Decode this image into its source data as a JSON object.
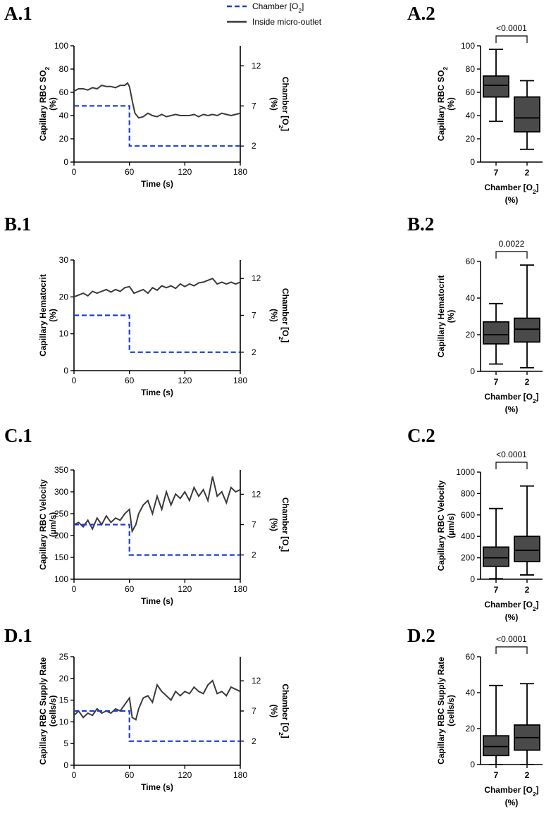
{
  "legend": {
    "chamber": "Chamber [O2]",
    "inside": "Inside micro-outlet"
  },
  "colors": {
    "trace": "#3a3a3a",
    "chamber": "#1a3adf",
    "box": "#4a4a4a",
    "axis": "#000000"
  },
  "chart_data": [
    {
      "id": "A.1",
      "type": "line",
      "title": "",
      "xlabel": "Time (s)",
      "xlim": [
        0,
        180
      ],
      "xticks": [
        0,
        60,
        120,
        180
      ],
      "ylabel": "Capillary RBC SO2",
      "ylabel_unit": "(%)",
      "ylim": [
        0,
        100
      ],
      "yticks": [
        0,
        20,
        40,
        60,
        80,
        100
      ],
      "y2label": "Chamber [O2]",
      "y2label_unit": "(%)",
      "y2lim": [
        0,
        14.5
      ],
      "y2ticks": [
        2,
        7,
        12
      ],
      "series": [
        {
          "name": "Inside micro-outlet",
          "axis": "left",
          "style": "solid",
          "x": [
            0,
            5,
            10,
            15,
            20,
            25,
            30,
            35,
            40,
            45,
            50,
            55,
            58,
            60,
            63,
            66,
            70,
            75,
            80,
            85,
            90,
            95,
            100,
            105,
            110,
            115,
            120,
            125,
            130,
            135,
            140,
            145,
            150,
            155,
            160,
            165,
            170,
            175,
            180
          ],
          "y": [
            61,
            63,
            63,
            62,
            64,
            63,
            66,
            65,
            65,
            64,
            66,
            66,
            68,
            65,
            53,
            42,
            38,
            39,
            42,
            40,
            39,
            41,
            39,
            40,
            41,
            40,
            40,
            40,
            41,
            39,
            41,
            40,
            41,
            40,
            42,
            41,
            40,
            41,
            42
          ]
        },
        {
          "name": "Chamber [O2]",
          "axis": "right",
          "style": "dashed",
          "x": [
            0,
            60,
            60,
            180
          ],
          "y": [
            7,
            7,
            2,
            2
          ]
        }
      ]
    },
    {
      "id": "A.2",
      "type": "box",
      "xlabel": "Chamber [O2]",
      "xlabel_unit": "(%)",
      "categories": [
        "7",
        "2"
      ],
      "ylabel": "Capillary RBC SO2",
      "ylabel_unit": "(%)",
      "ylim": [
        0,
        100
      ],
      "yticks": [
        0,
        20,
        40,
        60,
        80,
        100
      ],
      "boxes": [
        {
          "category": "7",
          "min": 35,
          "q1": 56,
          "median": 66,
          "q3": 74,
          "max": 97
        },
        {
          "category": "2",
          "min": 11,
          "q1": 26,
          "median": 38,
          "q3": 56,
          "max": 70
        }
      ],
      "p_value": "<0.0001"
    },
    {
      "id": "B.1",
      "type": "line",
      "xlabel": "Time (s)",
      "xlim": [
        0,
        180
      ],
      "xticks": [
        0,
        60,
        120,
        180
      ],
      "ylabel": "Capillary Hematocrit",
      "ylabel_unit": "(%)",
      "ylim": [
        0,
        30
      ],
      "yticks": [
        0,
        10,
        20,
        30
      ],
      "y2label": "Chamber [O2]",
      "y2label_unit": "(%)",
      "y2lim": [
        -0.5,
        14.5
      ],
      "y2ticks": [
        2,
        7,
        12
      ],
      "series": [
        {
          "name": "Inside micro-outlet",
          "axis": "left",
          "style": "solid",
          "x": [
            0,
            5,
            10,
            15,
            20,
            25,
            30,
            35,
            40,
            45,
            50,
            55,
            60,
            65,
            70,
            75,
            80,
            85,
            90,
            95,
            100,
            105,
            110,
            115,
            120,
            125,
            130,
            135,
            140,
            145,
            150,
            155,
            160,
            165,
            170,
            175,
            180
          ],
          "y": [
            20,
            20.5,
            21,
            20.3,
            21.5,
            21,
            21.5,
            22,
            21.3,
            22,
            21.5,
            22.5,
            22.8,
            21,
            21.5,
            22,
            21,
            22.5,
            21.8,
            23,
            22.5,
            23,
            22.3,
            23.5,
            22.8,
            23.5,
            23,
            23.8,
            24,
            24.5,
            25,
            23.5,
            24,
            23.5,
            24,
            23.5,
            24
          ]
        },
        {
          "name": "Chamber [O2]",
          "axis": "right",
          "style": "dashed",
          "x": [
            0,
            60,
            60,
            180
          ],
          "y": [
            7,
            7,
            2,
            2
          ]
        }
      ]
    },
    {
      "id": "B.2",
      "type": "box",
      "xlabel": "Chamber [O2]",
      "xlabel_unit": "(%)",
      "categories": [
        "7",
        "2"
      ],
      "ylabel": "Capillary Hematocrit",
      "ylabel_unit": "(%)",
      "ylim": [
        0,
        60
      ],
      "yticks": [
        0,
        20,
        40,
        60
      ],
      "boxes": [
        {
          "category": "7",
          "min": 4,
          "q1": 15,
          "median": 20,
          "q3": 27,
          "max": 37
        },
        {
          "category": "2",
          "min": 2,
          "q1": 16,
          "median": 23,
          "q3": 29,
          "max": 58
        }
      ],
      "p_value": "0.0022"
    },
    {
      "id": "C.1",
      "type": "line",
      "xlabel": "Time (s)",
      "xlim": [
        0,
        180
      ],
      "xticks": [
        0,
        60,
        120,
        180
      ],
      "ylabel": "Capillary RBC Velocity",
      "ylabel_unit": "(µm/s)",
      "ylim": [
        100,
        350
      ],
      "yticks": [
        100,
        150,
        200,
        250,
        300,
        350
      ],
      "y2label": "Chamber [O2]",
      "y2label_unit": "(%)",
      "y2lim": [
        -2,
        16
      ],
      "y2ticks": [
        2,
        7,
        12
      ],
      "series": [
        {
          "name": "Inside micro-outlet",
          "axis": "left",
          "style": "solid",
          "x": [
            0,
            5,
            10,
            15,
            20,
            25,
            30,
            35,
            40,
            45,
            50,
            55,
            60,
            63,
            67,
            70,
            75,
            80,
            85,
            90,
            95,
            100,
            105,
            110,
            115,
            120,
            125,
            130,
            135,
            140,
            145,
            150,
            155,
            160,
            165,
            170,
            175,
            180
          ],
          "y": [
            225,
            230,
            220,
            235,
            215,
            240,
            225,
            245,
            230,
            240,
            235,
            250,
            260,
            210,
            225,
            250,
            270,
            280,
            250,
            290,
            260,
            300,
            270,
            295,
            285,
            300,
            280,
            310,
            290,
            305,
            280,
            335,
            290,
            300,
            275,
            310,
            300,
            305
          ]
        },
        {
          "name": "Chamber [O2]",
          "axis": "right",
          "style": "dashed",
          "x": [
            0,
            60,
            60,
            180
          ],
          "y": [
            7,
            7,
            2,
            2
          ]
        }
      ]
    },
    {
      "id": "C.2",
      "type": "box",
      "xlabel": "Chamber [O2]",
      "xlabel_unit": "(%)",
      "categories": [
        "7",
        "2"
      ],
      "ylabel": "Capillary RBC Velocity",
      "ylabel_unit": "(µm/s)",
      "ylim": [
        0,
        1000
      ],
      "yticks": [
        0,
        200,
        400,
        600,
        800,
        1000
      ],
      "boxes": [
        {
          "category": "7",
          "min": 5,
          "q1": 120,
          "median": 200,
          "q3": 300,
          "max": 660
        },
        {
          "category": "2",
          "min": 40,
          "q1": 165,
          "median": 270,
          "q3": 400,
          "max": 870
        }
      ],
      "p_value": "<0.0001"
    },
    {
      "id": "D.1",
      "type": "line",
      "xlabel": "Time (s)",
      "xlim": [
        0,
        180
      ],
      "xticks": [
        0,
        60,
        120,
        180
      ],
      "ylabel": "Capillary RBC Supply Rate",
      "ylabel_unit": "(cells/s)",
      "ylim": [
        0,
        25
      ],
      "yticks": [
        0,
        5,
        10,
        15,
        20,
        25
      ],
      "y2label": "Chamber [O2]",
      "y2label_unit": "(%)",
      "y2lim": [
        -2,
        16
      ],
      "y2ticks": [
        2,
        7,
        12
      ],
      "series": [
        {
          "name": "Inside micro-outlet",
          "axis": "left",
          "style": "solid",
          "x": [
            0,
            5,
            10,
            15,
            20,
            25,
            30,
            35,
            40,
            45,
            50,
            55,
            60,
            63,
            67,
            70,
            75,
            80,
            85,
            90,
            95,
            100,
            105,
            110,
            115,
            120,
            125,
            130,
            135,
            140,
            145,
            150,
            155,
            160,
            165,
            170,
            175,
            180
          ],
          "y": [
            11.5,
            12.5,
            11,
            12,
            11.5,
            13,
            12,
            12.5,
            12,
            13,
            12.5,
            14,
            15.5,
            11,
            10.5,
            13,
            15.5,
            16,
            14.5,
            18.5,
            17,
            16,
            15,
            17,
            16,
            17,
            16.5,
            18,
            17,
            16.5,
            18.5,
            19.5,
            16.5,
            17,
            16,
            18,
            17.5,
            17
          ]
        },
        {
          "name": "Chamber [O2]",
          "axis": "right",
          "style": "dashed",
          "x": [
            0,
            60,
            60,
            180
          ],
          "y": [
            7,
            7,
            2,
            2
          ]
        }
      ]
    },
    {
      "id": "D.2",
      "type": "box",
      "xlabel": "Chamber [O2]",
      "xlabel_unit": "(%)",
      "categories": [
        "7",
        "2"
      ],
      "ylabel": "Capillary RBC Supply Rate",
      "ylabel_unit": "(cells/s)",
      "ylim": [
        0,
        60
      ],
      "yticks": [
        0,
        20,
        40,
        60
      ],
      "boxes": [
        {
          "category": "7",
          "min": 0,
          "q1": 5,
          "median": 10,
          "q3": 16,
          "max": 44
        },
        {
          "category": "2",
          "min": 0,
          "q1": 8,
          "median": 15,
          "q3": 22,
          "max": 45
        }
      ],
      "p_value": "<0.0001"
    }
  ]
}
